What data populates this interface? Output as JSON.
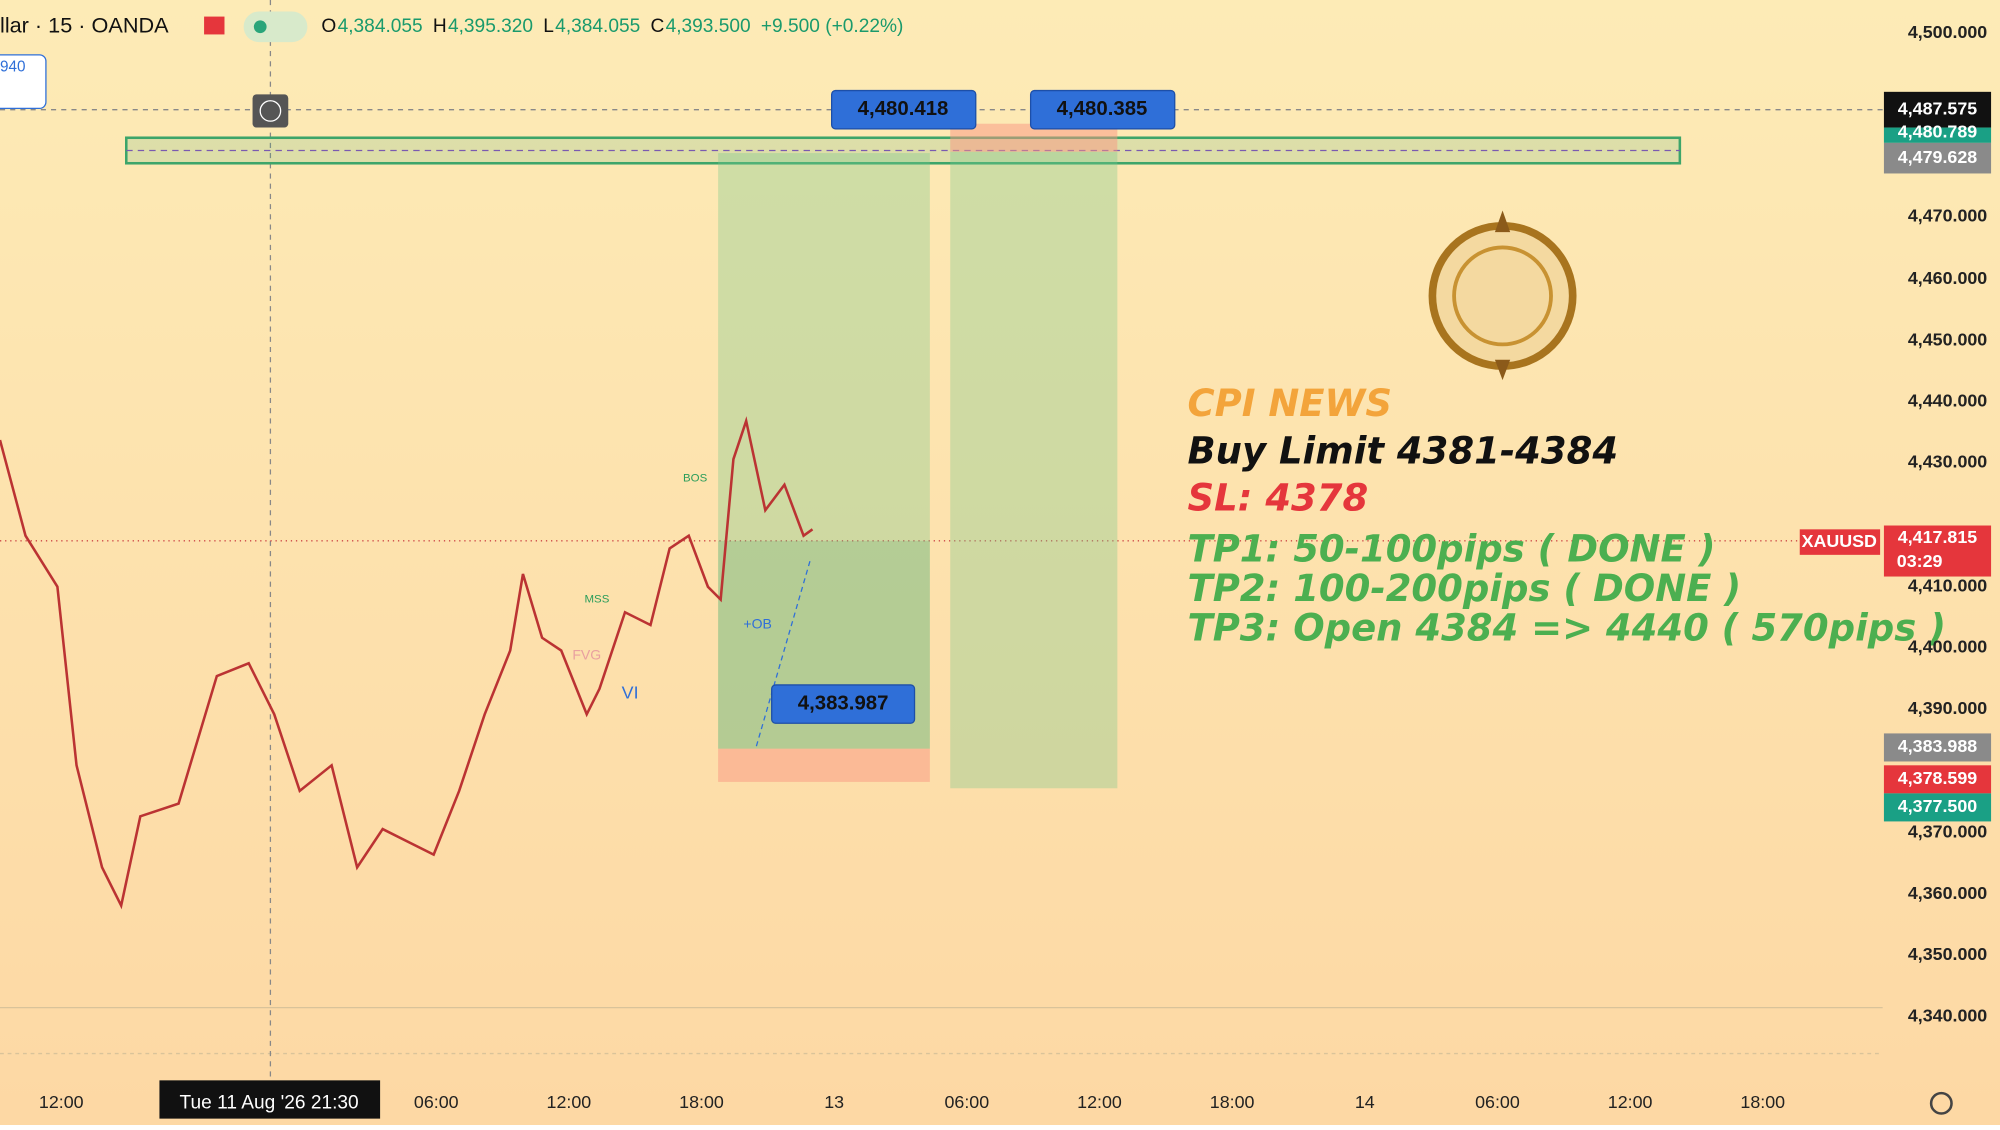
{
  "header": {
    "symbol": "llar · 15 · OANDA",
    "ohlc": [
      {
        "key": "O",
        "value": "4,384.055"
      },
      {
        "key": "H",
        "value": "4,395.320"
      },
      {
        "key": "L",
        "value": "4,384.055"
      },
      {
        "key": "C",
        "value": "4,393.500"
      }
    ],
    "change": "+9.500 (+0.22%)",
    "side_box": "940"
  },
  "price_axis": [
    "4,500.000",
    "4,470.000",
    "4,460.000",
    "4,450.000",
    "4,440.000",
    "4,430.000",
    "4,410.000",
    "4,400.000",
    "4,390.000",
    "4,370.000",
    "4,360.000",
    "4,350.000",
    "4,340.000"
  ],
  "time_axis": [
    "12:00",
    "06:00",
    "12:00",
    "18:00",
    "13",
    "06:00",
    "12:00",
    "18:00",
    "14",
    "06:00",
    "12:00",
    "18:00"
  ],
  "crosshair_date": "Tue 11 Aug '26  21:30",
  "price_tags": {
    "crosshair": "4,487.575",
    "upper": "4,480.789",
    "zone": "4,479.628",
    "symbol": "XAUUSD",
    "last": "4,417.815",
    "countdown": "03:29",
    "entry": "4,383.988",
    "stop": "4,378.599",
    "low": "4,377.500"
  },
  "callouts": [
    "4,480.418",
    "4,480.385",
    "4,383.987"
  ],
  "chart_labels": [
    "BOS",
    "MSS",
    "FVG",
    "+OB",
    "VI"
  ],
  "note": {
    "title": "CPI NEWS",
    "order": "Buy Limit 4381-4384",
    "sl": "SL: 4378",
    "tp": [
      "TP1: 50-100pips ( DONE )",
      "TP2: 100-200pips ( DONE )",
      "TP3: Open 4384 => 4440 ( 570pips )"
    ]
  }
}
